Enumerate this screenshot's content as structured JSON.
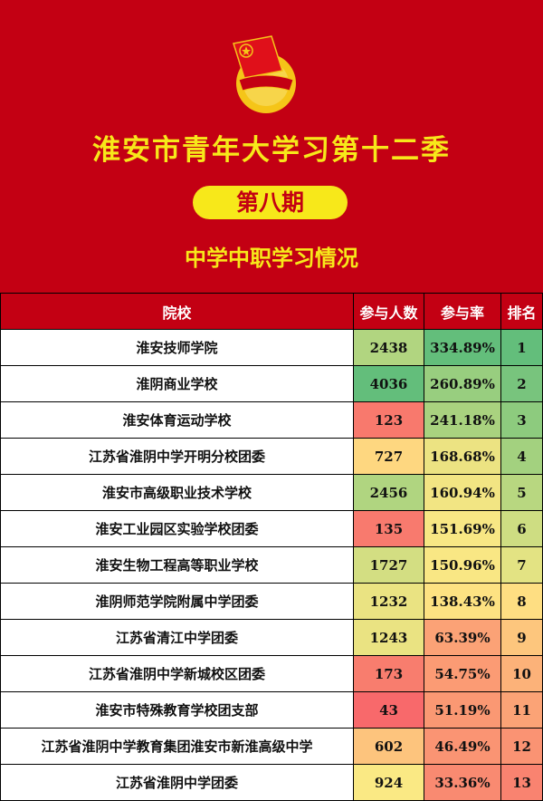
{
  "banner": {
    "title": "淮安市青年大学习第十二季",
    "issue": "第八期",
    "subtitle": "中学中职学习情况",
    "emblem_text": "中国共青团",
    "colors": {
      "background": "#c30013",
      "accent": "#f7e81a"
    }
  },
  "table": {
    "headers": [
      "院校",
      "参与人数",
      "参与率",
      "排名"
    ],
    "rows": [
      {
        "school": "淮安技师学院",
        "count": "2438",
        "rate": "334.89%",
        "rank": "1",
        "count_color": "#b1d580",
        "rate_color": "#63be7b",
        "rank_color": "#63be7b"
      },
      {
        "school": "淮阴商业学校",
        "count": "4036",
        "rate": "260.89%",
        "rank": "2",
        "count_color": "#63be7b",
        "rate_color": "#98ce7f",
        "rank_color": "#78c47d"
      },
      {
        "school": "淮安体育运动学校",
        "count": "123",
        "rate": "241.18%",
        "rank": "3",
        "count_color": "#f8796d",
        "rate_color": "#a9d27f",
        "rank_color": "#8dcb7e"
      },
      {
        "school": "江苏省淮阴中学开明分校团委",
        "count": "727",
        "rate": "168.68%",
        "rank": "4",
        "count_color": "#fed780",
        "rate_color": "#ece382",
        "rank_color": "#a3d17f"
      },
      {
        "school": "淮安市高级职业技术学校",
        "count": "2456",
        "rate": "160.94%",
        "rank": "5",
        "count_color": "#b0d580",
        "rate_color": "#f2e583",
        "rank_color": "#b8d780"
      },
      {
        "school": "淮安工业园区实验学校团委",
        "count": "135",
        "rate": "151.69%",
        "rank": "6",
        "count_color": "#f87a6e",
        "rate_color": "#f8e784",
        "rank_color": "#cedd82"
      },
      {
        "school": "淮安生物工程高等职业学校",
        "count": "1727",
        "rate": "150.96%",
        "rank": "7",
        "count_color": "#d3de82",
        "rate_color": "#f9e784",
        "rank_color": "#e3e383"
      },
      {
        "school": "淮阴师范学院附属中学团委",
        "count": "1232",
        "rate": "138.43%",
        "rank": "8",
        "count_color": "#eae382",
        "rate_color": "#fde282",
        "rank_color": "#fede82"
      },
      {
        "school": "江苏省清江中学团委",
        "count": "1243",
        "rate": "63.39%",
        "rank": "9",
        "count_color": "#eae382",
        "rate_color": "#fba276",
        "rank_color": "#fdc67d"
      },
      {
        "school": "江苏省淮阴中学新城校区团委",
        "count": "173",
        "rate": "54.75%",
        "rank": "10",
        "count_color": "#f87d6e",
        "rate_color": "#fb9b74",
        "rank_color": "#fcb279"
      },
      {
        "school": "淮安市特殊教育学校团支部",
        "count": "43",
        "rate": "51.19%",
        "rank": "11",
        "count_color": "#f8696b",
        "rate_color": "#fa9873",
        "rank_color": "#fba376"
      },
      {
        "school": "江苏省淮阴中学教育集团淮安市新淮高级中学",
        "count": "602",
        "rate": "46.49%",
        "rank": "12",
        "count_color": "#fdc47d",
        "rate_color": "#fa9473",
        "rank_color": "#fa9373"
      },
      {
        "school": "江苏省淮阴中学团委",
        "count": "924",
        "rate": "33.36%",
        "rank": "13",
        "count_color": "#fae984",
        "rate_color": "#f98a71",
        "rank_color": "#f98370"
      }
    ]
  }
}
